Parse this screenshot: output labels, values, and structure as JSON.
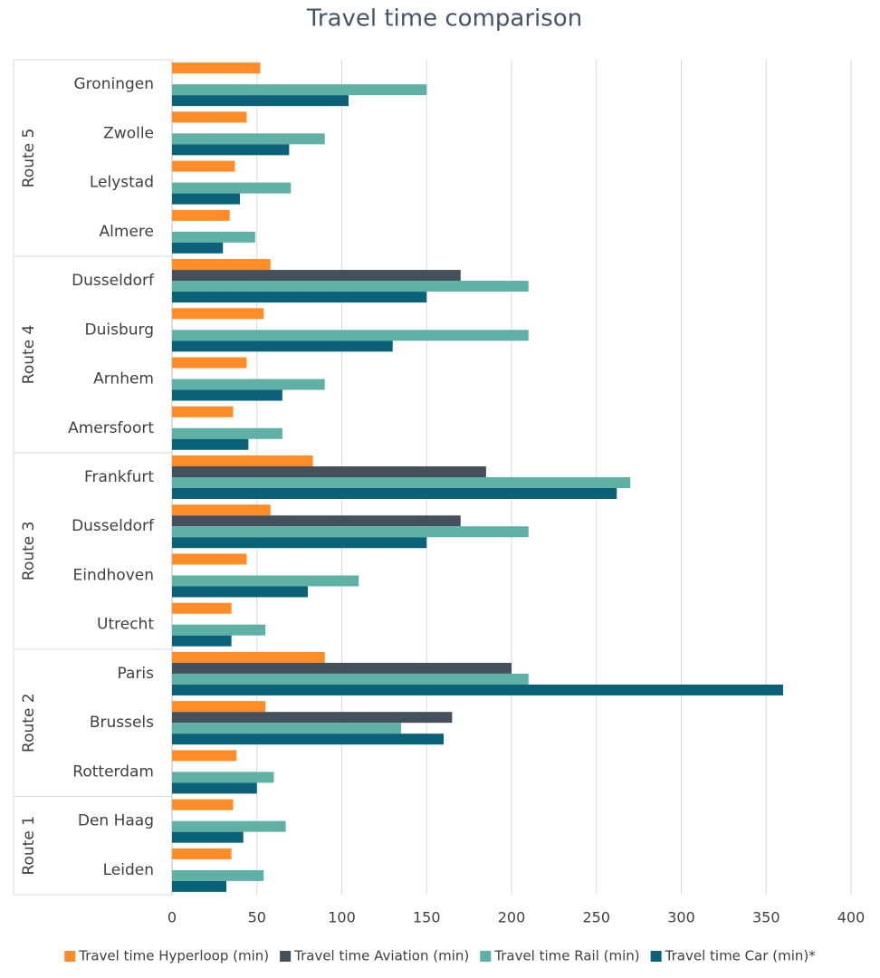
{
  "chart_data": {
    "type": "bar",
    "orientation": "horizontal",
    "title": "Travel time comparison",
    "groups": [
      {
        "name": "Route 5",
        "categories": [
          "Groningen",
          "Zwolle",
          "Lelystad",
          "Almere"
        ]
      },
      {
        "name": "Route 4",
        "categories": [
          "Dusseldorf",
          "Duisburg",
          "Arnhem",
          "Amersfoort"
        ]
      },
      {
        "name": "Route 3",
        "categories": [
          "Frankfurt",
          "Dusseldorf",
          "Eindhoven",
          "Utrecht"
        ]
      },
      {
        "name": "Route 2",
        "categories": [
          "Paris",
          "Brussels",
          "Rotterdam"
        ]
      },
      {
        "name": "Route 1",
        "categories": [
          "Den Haag",
          "Leiden"
        ]
      }
    ],
    "series": [
      {
        "name": "Travel time Hyperloop (min)",
        "color": "#ff8c26",
        "values": [
          52,
          44,
          37,
          34,
          58,
          54,
          44,
          36,
          83,
          58,
          44,
          35,
          90,
          55,
          38,
          36,
          35
        ]
      },
      {
        "name": "Travel time Aviation (min)",
        "color": "#44515c",
        "values": [
          null,
          null,
          null,
          null,
          170,
          null,
          null,
          null,
          185,
          170,
          null,
          null,
          200,
          165,
          null,
          null,
          null
        ]
      },
      {
        "name": "Travel time Rail (min)",
        "color": "#5fb0a5",
        "values": [
          150,
          90,
          70,
          49,
          210,
          210,
          90,
          65,
          270,
          210,
          110,
          55,
          210,
          135,
          60,
          67,
          54
        ]
      },
      {
        "name": "Travel time Car (min)*",
        "color": "#0b6178",
        "values": [
          104,
          69,
          40,
          30,
          150,
          130,
          65,
          45,
          262,
          150,
          80,
          35,
          360,
          160,
          50,
          42,
          32
        ]
      }
    ],
    "xlim": [
      0,
      400
    ],
    "xticks": [
      0,
      50,
      100,
      150,
      200,
      250,
      300,
      350,
      400
    ],
    "grid": true,
    "legend": "bottom"
  }
}
